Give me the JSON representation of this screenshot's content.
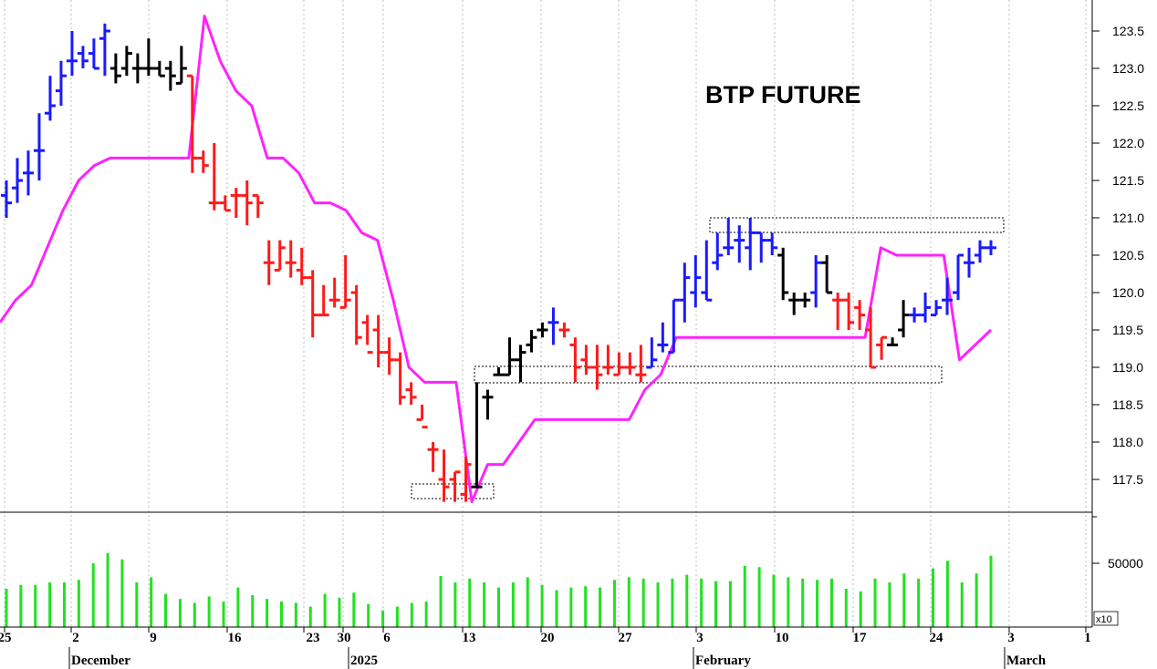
{
  "chart_data": {
    "type": "ohlc",
    "title": "BTP FUTURE",
    "price_axis": {
      "ticks": [
        "123.5",
        "123.0",
        "122.5",
        "122.0",
        "121.5",
        "121.0",
        "120.5",
        "120.0",
        "119.5",
        "119.0",
        "118.5",
        "118.0",
        "117.5"
      ],
      "ylim": [
        117.1,
        124.0
      ]
    },
    "volume_axis": {
      "ticks": [
        "50000"
      ],
      "multiplier_label": "x10"
    },
    "date_axis": {
      "day_labels": [
        "25",
        "2",
        "9",
        "16",
        "23",
        "30",
        "6",
        "13",
        "20",
        "27",
        "3",
        "10",
        "17",
        "24",
        "3",
        "1"
      ],
      "month_labels": [
        "December",
        "2025",
        "February",
        "March"
      ]
    },
    "series_colors": {
      "up": "#1a1aff",
      "down": "#ff1a1a",
      "neutral": "#000000",
      "envelope": "#ff22ff",
      "volume": "#22e022"
    },
    "bars": [
      {
        "o": 121.3,
        "h": 121.5,
        "l": 121.0,
        "c": 121.2,
        "col": "blue"
      },
      {
        "o": 121.4,
        "h": 121.8,
        "l": 121.2,
        "c": 121.5,
        "col": "blue"
      },
      {
        "o": 121.6,
        "h": 121.9,
        "l": 121.3,
        "c": 121.6,
        "col": "blue"
      },
      {
        "o": 121.9,
        "h": 122.4,
        "l": 121.5,
        "c": 121.9,
        "col": "blue"
      },
      {
        "o": 122.4,
        "h": 122.9,
        "l": 122.3,
        "c": 122.5,
        "col": "blue"
      },
      {
        "o": 122.7,
        "h": 123.1,
        "l": 122.5,
        "c": 122.9,
        "col": "blue"
      },
      {
        "o": 123.1,
        "h": 123.5,
        "l": 122.9,
        "c": 123.1,
        "col": "blue"
      },
      {
        "o": 123.2,
        "h": 123.3,
        "l": 123.0,
        "c": 123.1,
        "col": "blue"
      },
      {
        "o": 123.2,
        "h": 123.4,
        "l": 123.0,
        "c": 123.0,
        "col": "blue"
      },
      {
        "o": 123.4,
        "h": 123.6,
        "l": 122.9,
        "c": 123.5,
        "col": "blue"
      },
      {
        "o": 123.0,
        "h": 123.2,
        "l": 122.8,
        "c": 122.9,
        "col": "black"
      },
      {
        "o": 123.0,
        "h": 123.3,
        "l": 122.9,
        "c": 123.2,
        "col": "black"
      },
      {
        "o": 123.0,
        "h": 123.2,
        "l": 122.8,
        "c": 123.0,
        "col": "black"
      },
      {
        "o": 123.0,
        "h": 123.4,
        "l": 122.9,
        "c": 123.0,
        "col": "black"
      },
      {
        "o": 123.0,
        "h": 123.1,
        "l": 122.9,
        "c": 122.9,
        "col": "black"
      },
      {
        "o": 123.0,
        "h": 123.1,
        "l": 122.7,
        "c": 122.9,
        "col": "black"
      },
      {
        "o": 122.8,
        "h": 123.3,
        "l": 122.8,
        "c": 123.0,
        "col": "black"
      },
      {
        "o": 122.9,
        "h": 122.9,
        "l": 121.6,
        "c": 121.8,
        "col": "red"
      },
      {
        "o": 121.8,
        "h": 121.9,
        "l": 121.6,
        "c": 121.7,
        "col": "red"
      },
      {
        "o": 121.2,
        "h": 122.0,
        "l": 121.1,
        "c": 121.2,
        "col": "red"
      },
      {
        "o": 121.2,
        "h": 121.3,
        "l": 121.1,
        "c": 121.1,
        "col": "red"
      },
      {
        "o": 121.3,
        "h": 121.4,
        "l": 121.0,
        "c": 121.3,
        "col": "red"
      },
      {
        "o": 121.3,
        "h": 121.5,
        "l": 120.9,
        "c": 121.2,
        "col": "red"
      },
      {
        "o": 121.3,
        "h": 121.3,
        "l": 121.0,
        "c": 121.2,
        "col": "red"
      },
      {
        "o": 120.4,
        "h": 120.7,
        "l": 120.1,
        "c": 120.4,
        "col": "red"
      },
      {
        "o": 120.3,
        "h": 120.7,
        "l": 120.3,
        "c": 120.6,
        "col": "red"
      },
      {
        "o": 120.4,
        "h": 120.7,
        "l": 120.2,
        "c": 120.4,
        "col": "red"
      },
      {
        "o": 120.3,
        "h": 120.6,
        "l": 120.1,
        "c": 120.2,
        "col": "red"
      },
      {
        "o": 120.2,
        "h": 120.3,
        "l": 119.4,
        "c": 119.7,
        "col": "red"
      },
      {
        "o": 119.7,
        "h": 120.1,
        "l": 119.7,
        "c": 119.7,
        "col": "red"
      },
      {
        "o": 119.9,
        "h": 120.2,
        "l": 119.8,
        "c": 119.9,
        "col": "red"
      },
      {
        "o": 119.8,
        "h": 120.5,
        "l": 119.8,
        "c": 119.9,
        "col": "red"
      },
      {
        "o": 120.0,
        "h": 120.1,
        "l": 119.3,
        "c": 119.4,
        "col": "red"
      },
      {
        "o": 119.6,
        "h": 119.7,
        "l": 119.3,
        "c": 119.2,
        "col": "red"
      },
      {
        "o": 119.5,
        "h": 119.7,
        "l": 119.0,
        "c": 119.2,
        "col": "red"
      },
      {
        "o": 119.2,
        "h": 119.4,
        "l": 118.9,
        "c": 119.1,
        "col": "red"
      },
      {
        "o": 119.1,
        "h": 119.2,
        "l": 118.5,
        "c": 118.6,
        "col": "red"
      },
      {
        "o": 118.7,
        "h": 118.8,
        "l": 118.5,
        "c": 118.6,
        "col": "red"
      },
      {
        "o": 118.3,
        "h": 118.5,
        "l": 118.3,
        "c": 118.2,
        "col": "red"
      },
      {
        "o": 117.9,
        "h": 118.0,
        "l": 117.6,
        "c": 117.9,
        "col": "red"
      },
      {
        "o": 117.5,
        "h": 117.9,
        "l": 117.2,
        "c": 117.4,
        "col": "red"
      },
      {
        "o": 117.5,
        "h": 117.6,
        "l": 117.2,
        "c": 117.6,
        "col": "red"
      },
      {
        "o": 117.3,
        "h": 117.8,
        "l": 117.2,
        "c": 117.7,
        "col": "red"
      },
      {
        "o": 117.4,
        "h": 118.8,
        "l": 117.4,
        "c": 117.4,
        "col": "black"
      },
      {
        "o": 118.6,
        "h": 118.7,
        "l": 118.3,
        "c": 118.6,
        "col": "black"
      },
      {
        "o": 118.9,
        "h": 119.0,
        "l": 118.9,
        "c": 118.9,
        "col": "black"
      },
      {
        "o": 118.9,
        "h": 119.4,
        "l": 118.9,
        "c": 119.1,
        "col": "black"
      },
      {
        "o": 119.1,
        "h": 119.3,
        "l": 118.8,
        "c": 119.2,
        "col": "black"
      },
      {
        "o": 119.3,
        "h": 119.5,
        "l": 119.2,
        "c": 119.4,
        "col": "black"
      },
      {
        "o": 119.5,
        "h": 119.6,
        "l": 119.4,
        "c": 119.5,
        "col": "black"
      },
      {
        "o": 119.6,
        "h": 119.8,
        "l": 119.3,
        "c": 119.6,
        "col": "blue"
      },
      {
        "o": 119.5,
        "h": 119.6,
        "l": 119.4,
        "c": 119.5,
        "col": "red"
      },
      {
        "o": 119.3,
        "h": 119.4,
        "l": 118.8,
        "c": 119.0,
        "col": "red"
      },
      {
        "o": 119.1,
        "h": 119.3,
        "l": 118.9,
        "c": 119.0,
        "col": "red"
      },
      {
        "o": 119.0,
        "h": 119.3,
        "l": 118.7,
        "c": 118.9,
        "col": "red"
      },
      {
        "o": 119.0,
        "h": 119.3,
        "l": 118.9,
        "c": 119.0,
        "col": "red"
      },
      {
        "o": 118.9,
        "h": 119.2,
        "l": 118.9,
        "c": 119.0,
        "col": "red"
      },
      {
        "o": 119.0,
        "h": 119.2,
        "l": 118.9,
        "c": 119.0,
        "col": "red"
      },
      {
        "o": 118.9,
        "h": 119.3,
        "l": 118.8,
        "c": 118.9,
        "col": "red"
      },
      {
        "o": 119.0,
        "h": 119.4,
        "l": 119.0,
        "c": 119.1,
        "col": "blue"
      },
      {
        "o": 119.3,
        "h": 119.6,
        "l": 119.2,
        "c": 119.3,
        "col": "blue"
      },
      {
        "o": 119.2,
        "h": 119.9,
        "l": 119.2,
        "c": 119.9,
        "col": "blue"
      },
      {
        "o": 119.9,
        "h": 120.4,
        "l": 119.6,
        "c": 120.2,
        "col": "blue"
      },
      {
        "o": 120.0,
        "h": 120.5,
        "l": 119.8,
        "c": 120.2,
        "col": "blue"
      },
      {
        "o": 120.0,
        "h": 120.7,
        "l": 119.9,
        "c": 119.9,
        "col": "blue"
      },
      {
        "o": 120.4,
        "h": 120.8,
        "l": 120.3,
        "c": 120.5,
        "col": "blue"
      },
      {
        "o": 120.6,
        "h": 121.0,
        "l": 120.5,
        "c": 120.6,
        "col": "blue"
      },
      {
        "o": 120.7,
        "h": 120.9,
        "l": 120.4,
        "c": 120.7,
        "col": "blue"
      },
      {
        "o": 120.6,
        "h": 121.0,
        "l": 120.3,
        "c": 120.8,
        "col": "blue"
      },
      {
        "o": 120.8,
        "h": 120.8,
        "l": 120.4,
        "c": 120.7,
        "col": "blue"
      },
      {
        "o": 120.7,
        "h": 120.8,
        "l": 120.5,
        "c": 120.6,
        "col": "blue"
      },
      {
        "o": 120.5,
        "h": 120.6,
        "l": 119.9,
        "c": 120.0,
        "col": "black"
      },
      {
        "o": 119.9,
        "h": 120.0,
        "l": 119.7,
        "c": 119.9,
        "col": "black"
      },
      {
        "o": 119.9,
        "h": 120.0,
        "l": 119.8,
        "c": 119.9,
        "col": "black"
      },
      {
        "o": 120.0,
        "h": 120.5,
        "l": 119.8,
        "c": 120.4,
        "col": "blue"
      },
      {
        "o": 120.4,
        "h": 120.5,
        "l": 120.0,
        "c": 120.0,
        "col": "black"
      },
      {
        "o": 119.9,
        "h": 120.0,
        "l": 119.5,
        "c": 119.9,
        "col": "red"
      },
      {
        "o": 119.9,
        "h": 120.0,
        "l": 119.5,
        "c": 119.6,
        "col": "red"
      },
      {
        "o": 119.8,
        "h": 119.9,
        "l": 119.5,
        "c": 119.7,
        "col": "red"
      },
      {
        "o": 119.5,
        "h": 119.8,
        "l": 119.0,
        "c": 119.0,
        "col": "red"
      },
      {
        "o": 119.3,
        "h": 119.4,
        "l": 119.1,
        "c": 119.4,
        "col": "red"
      },
      {
        "o": 119.3,
        "h": 119.4,
        "l": 119.3,
        "c": 119.3,
        "col": "black"
      },
      {
        "o": 119.5,
        "h": 119.9,
        "l": 119.4,
        "c": 119.7,
        "col": "black"
      },
      {
        "o": 119.7,
        "h": 119.8,
        "l": 119.6,
        "c": 119.7,
        "col": "blue"
      },
      {
        "o": 119.7,
        "h": 120.0,
        "l": 119.6,
        "c": 119.8,
        "col": "blue"
      },
      {
        "o": 119.7,
        "h": 119.9,
        "l": 119.7,
        "c": 119.8,
        "col": "blue"
      },
      {
        "o": 119.9,
        "h": 120.2,
        "l": 119.7,
        "c": 119.9,
        "col": "blue"
      },
      {
        "o": 120.0,
        "h": 120.5,
        "l": 119.9,
        "c": 120.5,
        "col": "blue"
      },
      {
        "o": 120.4,
        "h": 120.6,
        "l": 120.2,
        "c": 120.4,
        "col": "blue"
      },
      {
        "o": 120.5,
        "h": 120.7,
        "l": 120.4,
        "c": 120.6,
        "col": "blue"
      },
      {
        "o": 120.6,
        "h": 120.7,
        "l": 120.5,
        "c": 120.6,
        "col": "blue"
      }
    ],
    "envelope": [
      119.6,
      119.9,
      120.1,
      120.6,
      121.1,
      121.5,
      121.7,
      121.8,
      121.8,
      121.8,
      121.8,
      121.8,
      121.8,
      123.7,
      123.1,
      122.7,
      122.5,
      121.8,
      121.8,
      121.6,
      121.2,
      121.2,
      121.1,
      120.8,
      120.7,
      119.9,
      119.0,
      118.8,
      118.8,
      118.8,
      117.2,
      117.7,
      117.7,
      118.0,
      118.3,
      118.3,
      118.3,
      118.3,
      118.3,
      118.3,
      118.3,
      118.7,
      118.9,
      119.4,
      119.4,
      119.4,
      119.4,
      119.4,
      119.4,
      119.4,
      119.4,
      119.4,
      119.4,
      119.4,
      119.4,
      119.4,
      120.6,
      120.5,
      120.5,
      120.5,
      120.5,
      119.1,
      119.3,
      119.5
    ],
    "volume": [
      30000,
      33000,
      33000,
      35000,
      35000,
      37000,
      50000,
      58000,
      53000,
      35000,
      39000,
      26000,
      22000,
      19000,
      24000,
      20000,
      31000,
      25000,
      22000,
      20000,
      19000,
      16000,
      26000,
      23000,
      27000,
      18000,
      13000,
      16000,
      19000,
      20000,
      40000,
      35000,
      38000,
      35000,
      31000,
      35000,
      39000,
      33000,
      29000,
      31000,
      32000,
      31000,
      37000,
      39000,
      38000,
      35000,
      38000,
      41000,
      38000,
      36000,
      36000,
      48000,
      47000,
      41000,
      39000,
      38000,
      37000,
      38000,
      30000,
      28000,
      38000,
      35000,
      42000,
      38000,
      46000,
      52000,
      35000,
      42000,
      56000
    ]
  }
}
